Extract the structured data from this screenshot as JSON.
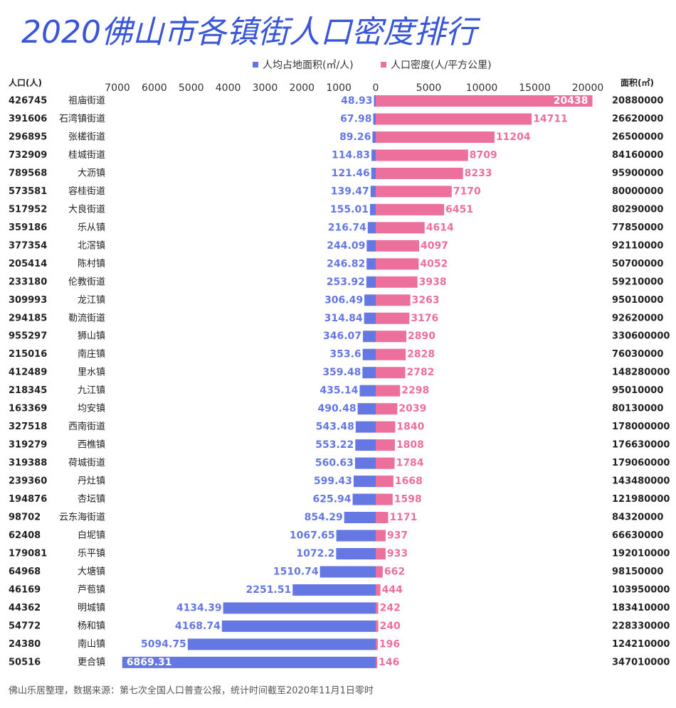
{
  "chart_data": {
    "type": "butterfly-bar",
    "title": "2020佛山市各镇街人口密度排行",
    "footer": "佛山乐居整理，数据来源：第七次全国人口普查公报，统计时间截至2020年11月1日零时",
    "categories": [
      "祖庙街道",
      "石湾镇街道",
      "张槎街道",
      "桂城街道",
      "大沥镇",
      "容桂街道",
      "大良街道",
      "乐从镇",
      "北滘镇",
      "陈村镇",
      "伦教街道",
      "龙江镇",
      "勒流街道",
      "狮山镇",
      "南庄镇",
      "里水镇",
      "九江镇",
      "均安镇",
      "西南街道",
      "西樵镇",
      "荷城街道",
      "丹灶镇",
      "杏坛镇",
      "云东海街道",
      "白坭镇",
      "乐平镇",
      "大塘镇",
      "芦苞镇",
      "明城镇",
      "杨和镇",
      "南山镇",
      "更合镇"
    ],
    "series": [
      {
        "name": "人均占地面积(㎡/人)",
        "color": "#6477e2",
        "axis": "x",
        "values": [
          48.93,
          67.98,
          89.26,
          114.83,
          121.46,
          139.47,
          155.01,
          216.74,
          244.09,
          246.82,
          253.92,
          306.49,
          314.84,
          346.07,
          353.6,
          359.48,
          435.14,
          490.48,
          543.48,
          553.22,
          560.63,
          599.43,
          625.94,
          854.29,
          1067.65,
          1072.2,
          1510.74,
          2251.51,
          4134.39,
          4168.74,
          5094.75,
          6869.31
        ]
      },
      {
        "name": "人口密度(人/平方公里)",
        "color": "#ec6f9c",
        "axis": "x2",
        "values": [
          20438,
          14711,
          11204,
          8709,
          8233,
          7170,
          6451,
          4614,
          4097,
          4052,
          3938,
          3263,
          3176,
          2890,
          2828,
          2782,
          2298,
          2039,
          1840,
          1808,
          1784,
          1668,
          1598,
          1171,
          937,
          933,
          662,
          444,
          242,
          240,
          196,
          146
        ]
      }
    ],
    "left_column": {
      "label": "人口(人)",
      "values": [
        426745,
        391606,
        296895,
        732909,
        789568,
        573581,
        517952,
        359186,
        377354,
        205414,
        233180,
        309993,
        294185,
        955297,
        215016,
        412489,
        218345,
        163369,
        327518,
        319279,
        319388,
        239360,
        194876,
        98702,
        62408,
        179081,
        64968,
        46169,
        44362,
        54772,
        24380,
        50516
      ]
    },
    "right_column": {
      "label": "面积(㎡)",
      "values": [
        20880000,
        26620000,
        26500000,
        84160000,
        95900000,
        80000000,
        80290000,
        77850000,
        92110000,
        50700000,
        59210000,
        95010000,
        92620000,
        330600000,
        76030000,
        148280000,
        95010000,
        80130000,
        178000000,
        176630000,
        179060000,
        143480000,
        121980000,
        84320000,
        66630000,
        192010000,
        98150000,
        103950000,
        183410000,
        228330000,
        124210000,
        347010000
      ]
    },
    "xlim": [
      0,
      7000
    ],
    "xticks": [
      7000,
      6000,
      5000,
      4000,
      3000,
      2000,
      1000,
      0
    ],
    "x2lim": [
      0,
      20000
    ],
    "x2ticks": [
      5000,
      10000,
      15000,
      20000
    ]
  }
}
